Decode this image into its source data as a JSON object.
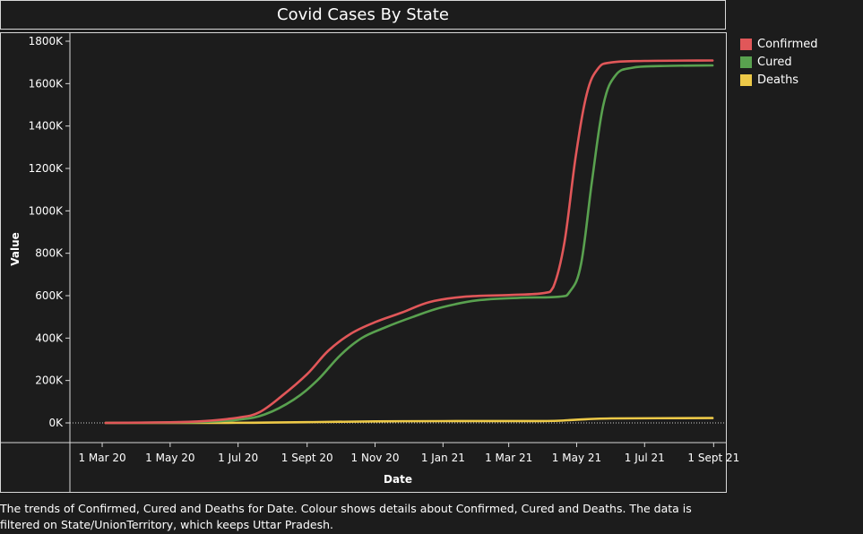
{
  "chart_data": {
    "type": "line",
    "title": "Covid Cases By State",
    "xlabel": "Date",
    "ylabel": "Value",
    "x_ticks": [
      "1 Mar 20",
      "1 May 20",
      "1 Jul 20",
      "1 Sept 20",
      "1 Nov 20",
      "1 Jan 21",
      "1 Mar 21",
      "1 May 21",
      "1 Jul 21",
      "1 Sept 21"
    ],
    "y_ticks": [
      "0K",
      "200K",
      "400K",
      "600K",
      "800K",
      "1000K",
      "1200K",
      "1400K",
      "1600K",
      "1800K"
    ],
    "ylim": [
      0,
      1800000
    ],
    "xlim": [
      "2020-02-01",
      "2021-09-12"
    ],
    "legend": "right",
    "grid": false,
    "series": [
      {
        "name": "Confirmed",
        "color": "#e15759",
        "points": [
          [
            "2020-03-04",
            0
          ],
          [
            "2020-05-01",
            2800
          ],
          [
            "2020-06-01",
            9000
          ],
          [
            "2020-07-01",
            25000
          ],
          [
            "2020-07-20",
            50000
          ],
          [
            "2020-08-10",
            130000
          ],
          [
            "2020-09-01",
            230000
          ],
          [
            "2020-09-20",
            340000
          ],
          [
            "2020-10-10",
            420000
          ],
          [
            "2020-11-01",
            475000
          ],
          [
            "2020-11-25",
            520000
          ],
          [
            "2020-12-20",
            570000
          ],
          [
            "2021-01-20",
            595000
          ],
          [
            "2021-03-01",
            603000
          ],
          [
            "2021-04-01",
            612000
          ],
          [
            "2021-04-10",
            640000
          ],
          [
            "2021-04-20",
            850000
          ],
          [
            "2021-04-30",
            1250000
          ],
          [
            "2021-05-10",
            1550000
          ],
          [
            "2021-05-20",
            1670000
          ],
          [
            "2021-06-01",
            1700000
          ],
          [
            "2021-07-01",
            1707000
          ],
          [
            "2021-08-31",
            1709000
          ]
        ]
      },
      {
        "name": "Cured",
        "color": "#59a14f",
        "points": [
          [
            "2020-03-04",
            0
          ],
          [
            "2020-05-01",
            1500
          ],
          [
            "2020-06-01",
            5000
          ],
          [
            "2020-07-01",
            15000
          ],
          [
            "2020-07-25",
            40000
          ],
          [
            "2020-08-20",
            110000
          ],
          [
            "2020-09-10",
            200000
          ],
          [
            "2020-10-01",
            320000
          ],
          [
            "2020-10-20",
            400000
          ],
          [
            "2020-11-10",
            450000
          ],
          [
            "2020-12-05",
            500000
          ],
          [
            "2020-12-31",
            545000
          ],
          [
            "2021-02-01",
            578000
          ],
          [
            "2021-03-10",
            590000
          ],
          [
            "2021-04-15",
            595000
          ],
          [
            "2021-04-25",
            620000
          ],
          [
            "2021-05-05",
            750000
          ],
          [
            "2021-05-15",
            1150000
          ],
          [
            "2021-05-25",
            1500000
          ],
          [
            "2021-06-05",
            1640000
          ],
          [
            "2021-06-20",
            1675000
          ],
          [
            "2021-07-15",
            1683000
          ],
          [
            "2021-08-31",
            1686000
          ]
        ]
      },
      {
        "name": "Deaths",
        "color": "#edc948",
        "points": [
          [
            "2020-03-04",
            0
          ],
          [
            "2020-06-01",
            200
          ],
          [
            "2020-07-15",
            1000
          ],
          [
            "2020-09-01",
            3500
          ],
          [
            "2020-11-01",
            7000
          ],
          [
            "2021-01-01",
            8500
          ],
          [
            "2021-04-01",
            8900
          ],
          [
            "2021-05-01",
            15000
          ],
          [
            "2021-06-01",
            21000
          ],
          [
            "2021-08-31",
            22800
          ]
        ]
      }
    ],
    "caption": "The trends of Confirmed, Cured and Deaths for Date.  Colour shows details about Confirmed, Cured and Deaths. The data is filtered on State/UnionTerritory, which keeps Uttar Pradesh."
  }
}
